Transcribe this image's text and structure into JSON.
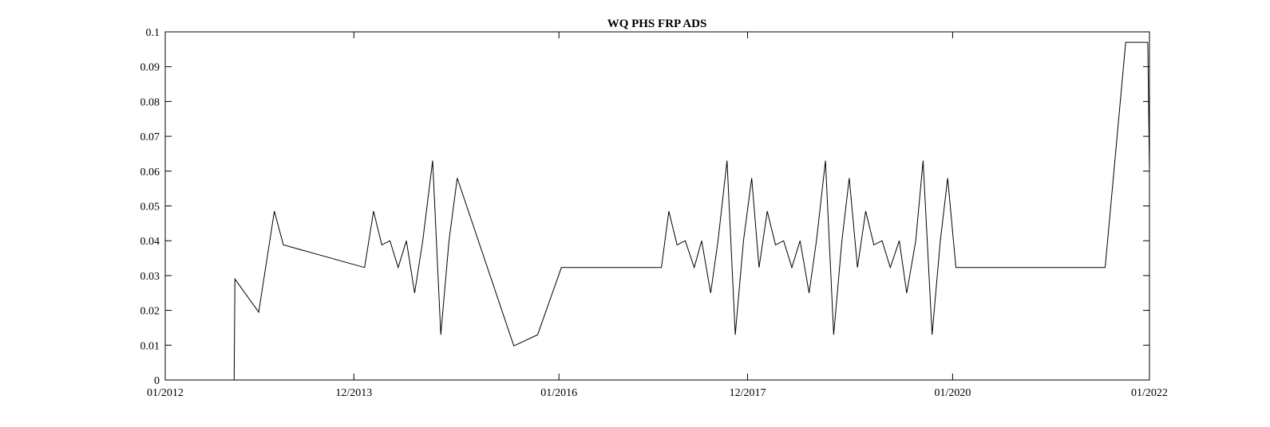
{
  "chart_data": {
    "type": "line",
    "title": "WQ PHS FRP ADS",
    "xlabel": "",
    "ylabel": "",
    "xlim": [
      0,
      120
    ],
    "ylim": [
      0,
      0.1
    ],
    "x_ticks": [
      0,
      23,
      48,
      71,
      96,
      120
    ],
    "x_tick_labels": [
      "01/2012",
      "12/2013",
      "01/2016",
      "12/2017",
      "01/2020",
      "01/2022"
    ],
    "y_ticks": [
      0,
      0.01,
      0.02,
      0.03,
      0.04,
      0.05,
      0.06,
      0.07,
      0.08,
      0.09,
      0.1
    ],
    "y_tick_labels": [
      "0",
      "0.01",
      "0.02",
      "0.03",
      "0.04",
      "0.05",
      "0.06",
      "0.07",
      "0.08",
      "0.09",
      "0.1"
    ],
    "grid": false,
    "line_color": "#000000",
    "series": [
      {
        "name": "WQ PHS FRP ADS",
        "x": [
          0,
          8.4,
          8.5,
          11.4,
          13.3,
          14.4,
          24.3,
          25.4,
          26.4,
          27.4,
          28.4,
          29.4,
          30.4,
          31.4,
          32.6,
          33.6,
          34.6,
          35.6,
          42.5,
          45.4,
          48.3,
          60.5,
          61.4,
          62.4,
          63.4,
          64.5,
          65.4,
          66.5,
          67.4,
          68.5,
          69.5,
          70.5,
          71.5,
          72.4,
          73.4,
          74.4,
          75.4,
          76.4,
          77.4,
          78.5,
          79.4,
          80.5,
          81.5,
          82.5,
          83.4,
          84.4,
          85.4,
          86.4,
          87.4,
          88.4,
          89.5,
          90.4,
          91.5,
          92.4,
          93.5,
          94.5,
          95.4,
          96.4,
          104.4,
          114.6,
          117.1,
          119.8,
          120
        ],
        "y": [
          0,
          0,
          0.029,
          0.0195,
          0.0485,
          0.0388,
          0.0323,
          0.0485,
          0.0388,
          0.04,
          0.0323,
          0.04,
          0.025,
          0.04,
          0.063,
          0.013,
          0.04,
          0.058,
          0.0098,
          0.013,
          0.0323,
          0.0323,
          0.0485,
          0.0388,
          0.04,
          0.0323,
          0.04,
          0.025,
          0.04,
          0.063,
          0.013,
          0.04,
          0.058,
          0.0323,
          0.0485,
          0.0388,
          0.04,
          0.0323,
          0.04,
          0.025,
          0.04,
          0.063,
          0.013,
          0.04,
          0.058,
          0.0323,
          0.0485,
          0.0388,
          0.04,
          0.0323,
          0.04,
          0.025,
          0.04,
          0.063,
          0.013,
          0.04,
          0.058,
          0.0323,
          0.0323,
          0.0323,
          0.097,
          0.097,
          0.06
        ]
      }
    ]
  }
}
